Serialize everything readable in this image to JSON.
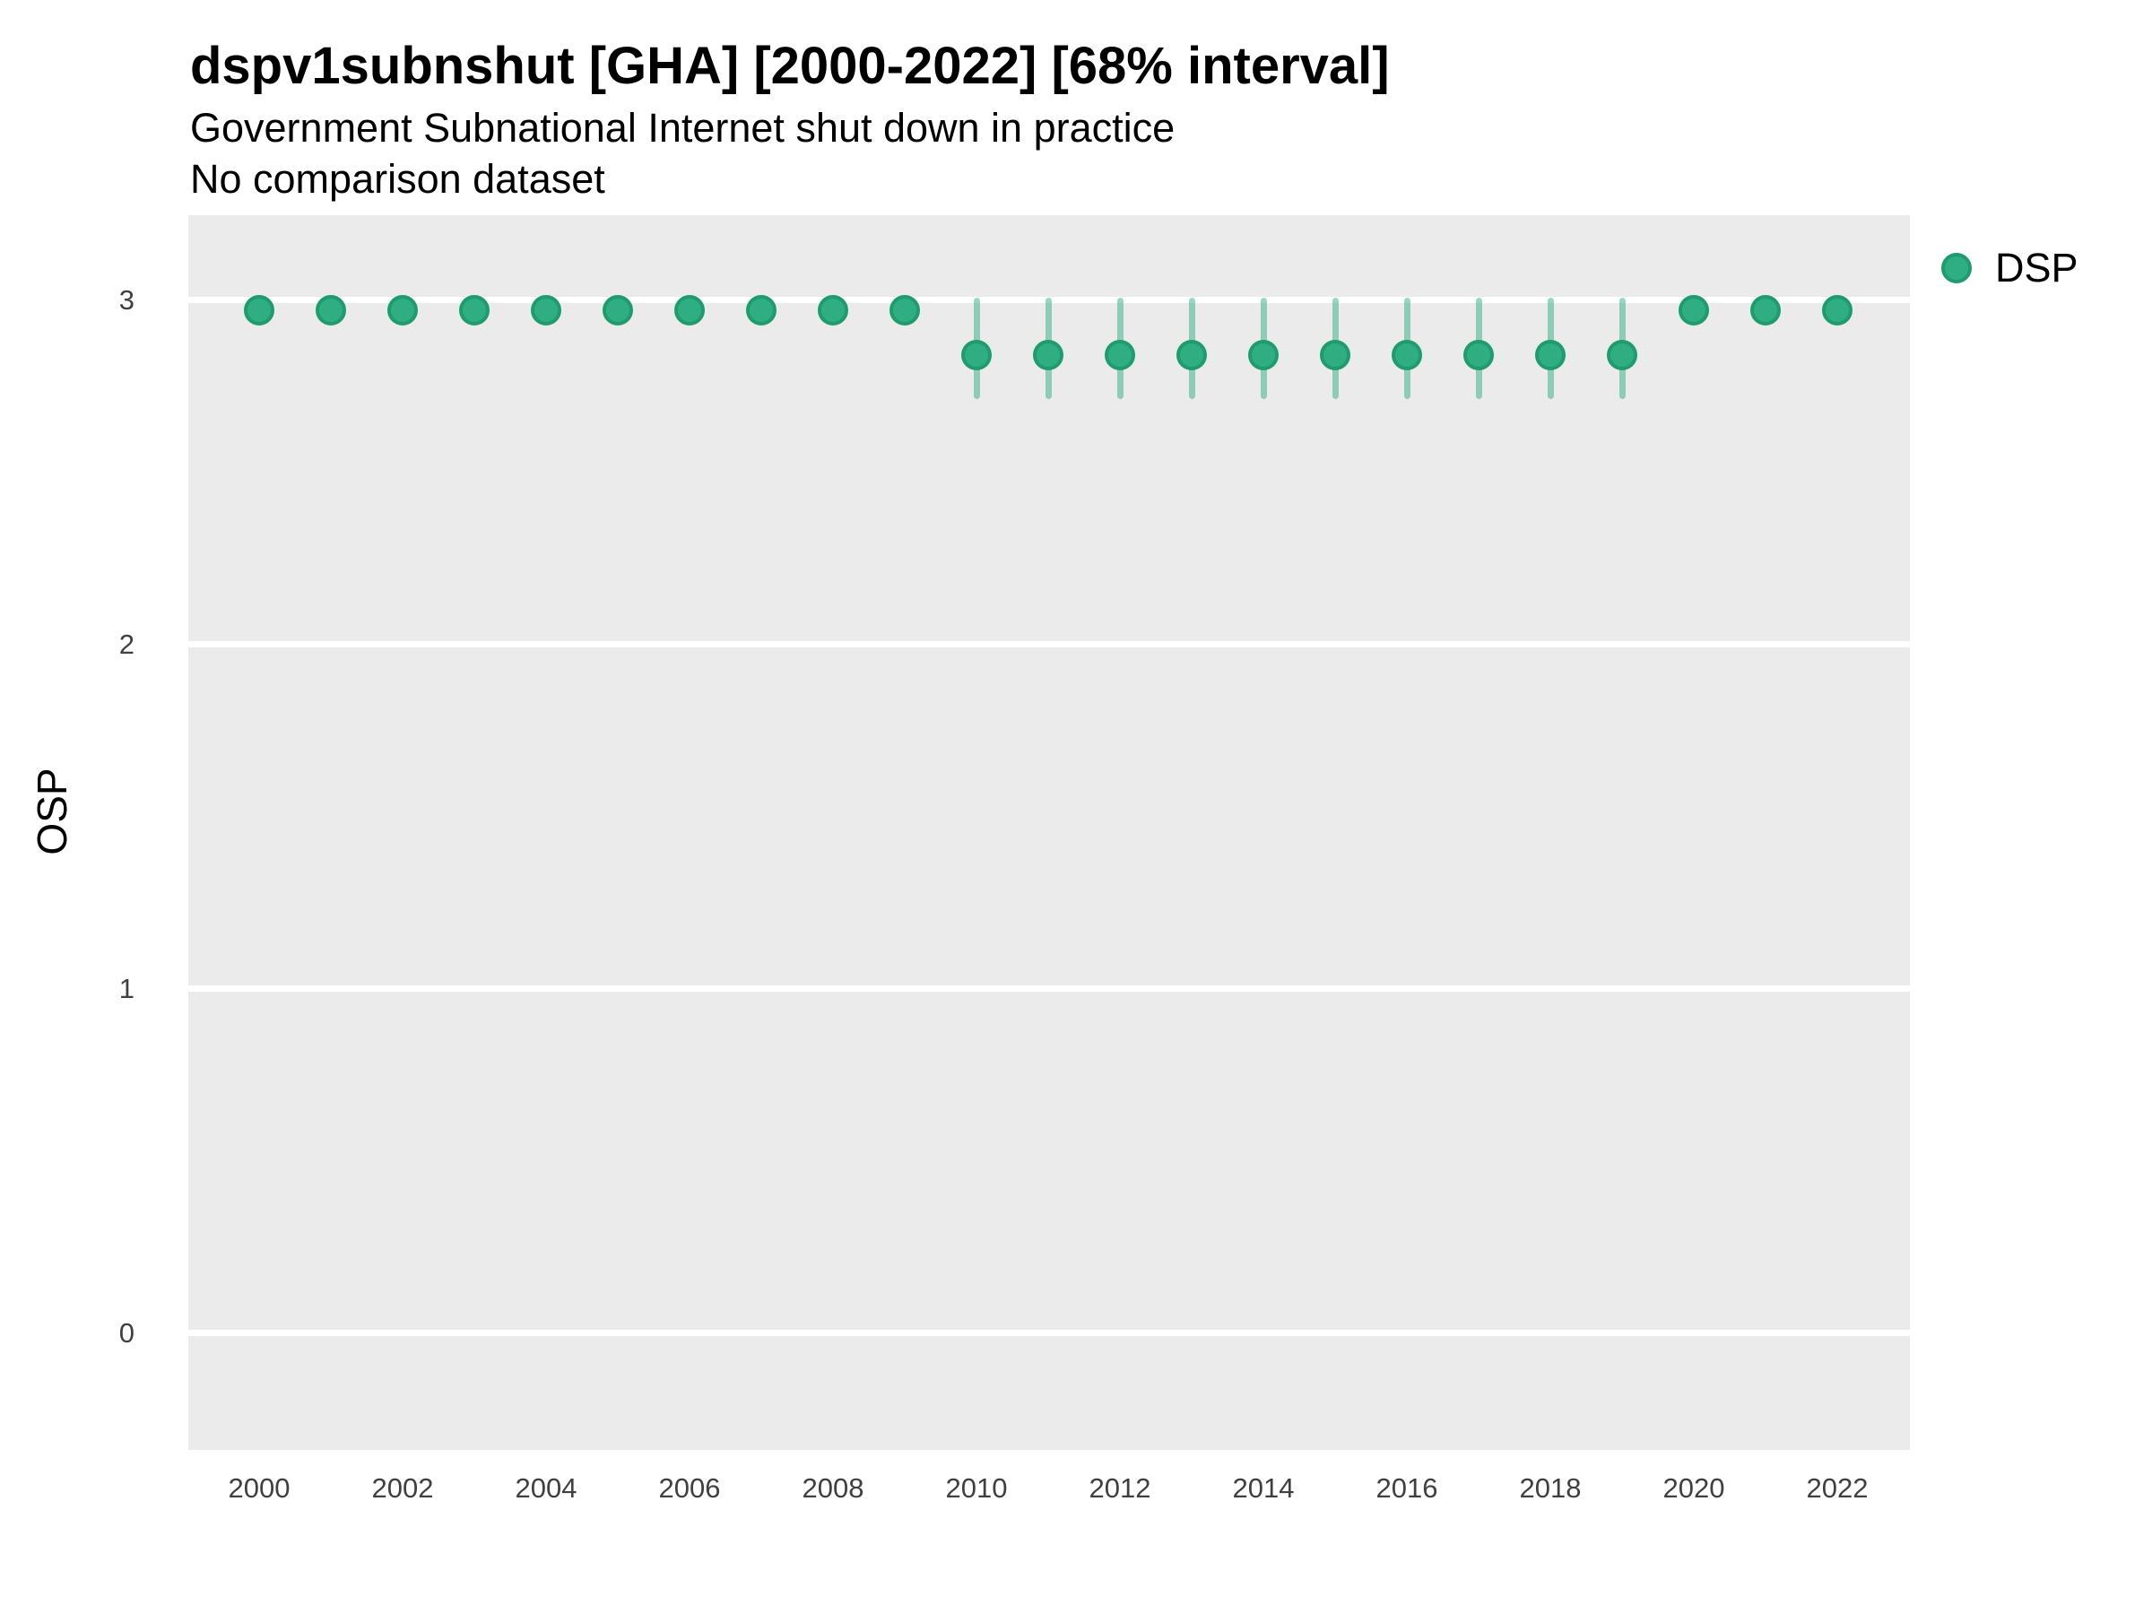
{
  "chart_data": {
    "type": "scatter",
    "title": "dspv1subnshut [GHA] [2000-2022] [68% interval]",
    "subtitle": "Government Subnational Internet shut down in practice",
    "note": "No comparison dataset",
    "xlabel": "",
    "ylabel": "OSP",
    "interval": "68%",
    "x_ticks": [
      2000,
      2002,
      2004,
      2006,
      2008,
      2010,
      2012,
      2014,
      2016,
      2018,
      2020,
      2022
    ],
    "y_ticks": [
      3,
      2,
      1,
      0
    ],
    "xlim": [
      1999,
      2023
    ],
    "ylim": [
      -0.34,
      3.25
    ],
    "grid": "horizontal major white gridlines on gray panel, no vertical gridlines",
    "legend_position": "top-right",
    "series": [
      {
        "name": "DSP",
        "x": [
          2000,
          2001,
          2002,
          2003,
          2004,
          2005,
          2006,
          2007,
          2008,
          2009,
          2010,
          2011,
          2012,
          2013,
          2014,
          2015,
          2016,
          2017,
          2018,
          2019,
          2020,
          2021,
          2022
        ],
        "y": [
          2.97,
          2.97,
          2.97,
          2.97,
          2.97,
          2.97,
          2.97,
          2.97,
          2.97,
          2.97,
          2.84,
          2.84,
          2.84,
          2.84,
          2.84,
          2.84,
          2.84,
          2.84,
          2.84,
          2.84,
          2.97,
          2.97,
          2.97
        ],
        "ci_low": [
          2.97,
          2.97,
          2.97,
          2.97,
          2.97,
          2.97,
          2.97,
          2.97,
          2.97,
          2.97,
          2.72,
          2.72,
          2.72,
          2.72,
          2.72,
          2.72,
          2.72,
          2.72,
          2.72,
          2.72,
          2.97,
          2.97,
          2.97
        ],
        "ci_high": [
          2.97,
          2.97,
          2.97,
          2.97,
          2.97,
          2.97,
          2.97,
          2.97,
          2.97,
          2.97,
          3.0,
          3.0,
          3.0,
          3.0,
          3.0,
          3.0,
          3.0,
          3.0,
          3.0,
          3.0,
          2.97,
          2.97,
          2.97
        ]
      }
    ]
  },
  "colors": {
    "point_fill": "#2fae83",
    "point_stroke": "#1f9c6e",
    "interval_band": "rgba(47, 174, 131, 0.5)",
    "panel_bg": "#ebebeb",
    "gridline": "#ffffff",
    "title_text": "#000000",
    "tick_text": "#404040"
  }
}
